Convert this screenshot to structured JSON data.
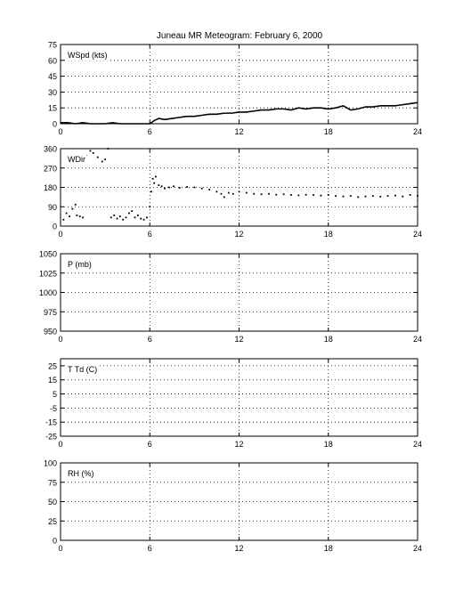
{
  "title": "Juneau MR Meteogram:  February  6, 2000",
  "chart_data": [
    {
      "type": "line",
      "panel": "wind-speed",
      "label": "WSpd (kts)",
      "xlim": [
        0,
        24
      ],
      "xticks": [
        "0",
        "6",
        "12",
        "18",
        "24"
      ],
      "ylim": [
        0,
        75
      ],
      "yticks": [
        "0",
        "15",
        "30",
        "45",
        "60",
        "75"
      ],
      "grid": true,
      "series": [
        {
          "x": [
            0,
            0.5,
            1.0,
            1.5,
            2.0,
            2.5,
            3.0,
            3.5,
            4.0,
            4.5,
            5.0,
            5.5,
            6.0,
            6.3,
            6.6,
            7.0,
            7.5,
            8.0,
            8.5,
            9.0,
            9.5,
            10.0,
            10.5,
            11.0,
            11.5,
            12.0,
            12.5,
            13.0,
            13.5,
            14.0,
            14.5,
            15.0,
            15.5,
            16.0,
            16.5,
            17.0,
            17.5,
            18.0,
            18.5,
            19.0,
            19.5,
            20.0,
            20.5,
            21.0,
            21.5,
            22.0,
            22.5,
            23.0,
            23.5,
            24.0
          ],
          "values": [
            1,
            1,
            0,
            1,
            0,
            0,
            0,
            1,
            0,
            0,
            0,
            0,
            0,
            3,
            5,
            4,
            5,
            6,
            7,
            7,
            8,
            9,
            9,
            10,
            10,
            11,
            11,
            12,
            13,
            13,
            14,
            14,
            13,
            15,
            14,
            15,
            15,
            14,
            15,
            17,
            13,
            14,
            16,
            16,
            17,
            17,
            17,
            18,
            19,
            20
          ]
        }
      ]
    },
    {
      "type": "scatter",
      "panel": "wind-direction",
      "label": "WDir",
      "xlim": [
        0,
        24
      ],
      "xticks": [
        "0",
        "6",
        "12",
        "18",
        "24"
      ],
      "ylim": [
        0,
        360
      ],
      "yticks": [
        "0",
        "90",
        "180",
        "270",
        "360"
      ],
      "grid": true,
      "series": [
        {
          "x": [
            0.2,
            0.4,
            0.6,
            0.8,
            1.0,
            1.1,
            1.3,
            1.5,
            1.7,
            2.0,
            2.2,
            2.5,
            2.8,
            3.0,
            3.2,
            3.4,
            3.6,
            3.8,
            4.0,
            4.2,
            4.4,
            4.6,
            4.8,
            5.0,
            5.2,
            5.4,
            5.6,
            5.8,
            6.0,
            6.1,
            6.2,
            6.3,
            6.4,
            6.6,
            6.8,
            7.0,
            7.3,
            7.6,
            8.0,
            8.5,
            9.0,
            9.5,
            10.0,
            10.5,
            10.8,
            11.0,
            11.3,
            11.6,
            12.0,
            12.5,
            13.0,
            13.5,
            14.0,
            14.5,
            15.0,
            15.5,
            16.0,
            16.5,
            17.0,
            17.5,
            18.0,
            18.5,
            19.0,
            19.5,
            20.0,
            20.5,
            21.0,
            21.5,
            22.0,
            22.5,
            23.0,
            23.5,
            24.0
          ],
          "values": [
            30,
            60,
            45,
            80,
            100,
            50,
            45,
            40,
            330,
            350,
            340,
            320,
            300,
            310,
            360,
            40,
            50,
            35,
            45,
            30,
            40,
            60,
            70,
            40,
            50,
            35,
            30,
            40,
            90,
            160,
            220,
            200,
            230,
            190,
            185,
            175,
            180,
            185,
            178,
            182,
            180,
            175,
            170,
            160,
            150,
            135,
            155,
            150,
            160,
            155,
            150,
            148,
            150,
            146,
            148,
            145,
            143,
            146,
            145,
            142,
            145,
            140,
            138,
            140,
            135,
            138,
            140,
            137,
            140,
            142,
            138,
            145,
            140
          ]
        }
      ]
    },
    {
      "type": "line",
      "panel": "pressure",
      "label": "P (mb)",
      "xlim": [
        0,
        24
      ],
      "xticks": [
        "0",
        "6",
        "12",
        "18",
        "24"
      ],
      "ylim": [
        950,
        1050
      ],
      "yticks": [
        "950",
        "975",
        "1000",
        "1025",
        "1050"
      ],
      "grid": true,
      "series": []
    },
    {
      "type": "line",
      "panel": "temperature",
      "label": "T Td (C)",
      "xlim": [
        0,
        24
      ],
      "xticks": [
        "0",
        "6",
        "12",
        "18",
        "24"
      ],
      "ylim": [
        -25,
        30
      ],
      "yticks": [
        "-25",
        "-15",
        "-5",
        "5",
        "15",
        "25"
      ],
      "grid": true,
      "series": []
    },
    {
      "type": "line",
      "panel": "relative-humidity",
      "label": "RH (%)",
      "xlim": [
        0,
        24
      ],
      "xticks": [
        "0",
        "6",
        "12",
        "18",
        "24"
      ],
      "ylim": [
        0,
        100
      ],
      "yticks": [
        "0",
        "25",
        "50",
        "75",
        "100"
      ],
      "grid": true,
      "series": []
    }
  ]
}
